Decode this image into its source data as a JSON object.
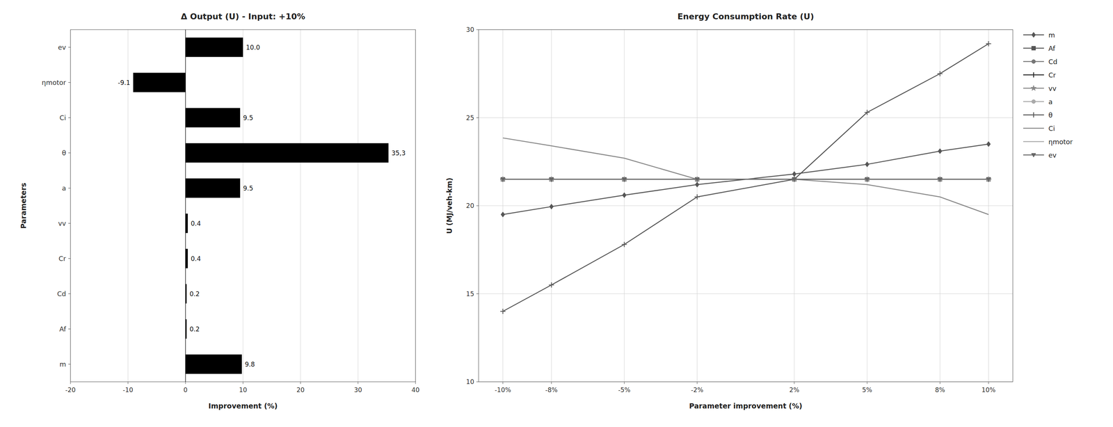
{
  "chart_data": [
    {
      "type": "bar",
      "orientation": "horizontal",
      "title": "Δ Output  (U) - Input: +10%",
      "xlabel": "Improvement (%)",
      "ylabel": "Parameters",
      "categories": [
        "ev",
        "ηmotor",
        "Ci",
        "θ",
        "a",
        "vv",
        "Cr",
        "Cd",
        "Af",
        "m"
      ],
      "values": [
        10.0,
        -9.1,
        9.5,
        35.3,
        9.5,
        0.4,
        0.4,
        0.2,
        0.2,
        9.8
      ],
      "value_labels": [
        "10.0",
        "-9.1",
        "9.5",
        "35,3",
        "9.5",
        "0.4",
        "0.4",
        "0.2",
        "0.2",
        "9.8"
      ],
      "data_labels": true,
      "color": "#000000",
      "xlim": [
        -20,
        40
      ],
      "xticks": [
        -20,
        -10,
        0,
        10,
        20,
        30,
        40
      ],
      "grid": true
    },
    {
      "type": "line",
      "title": "Energy Consumption  Rate (U)",
      "xlabel": "Parameter improvement (%)",
      "ylabel": "U (MJ/veh-km)",
      "x": [
        -10,
        -8,
        -5,
        -2,
        2,
        5,
        8,
        10
      ],
      "xlim": [
        -11,
        11
      ],
      "xticks": [
        {
          "value": -10,
          "label": "-10%"
        },
        {
          "value": -8,
          "label": "-8%"
        },
        {
          "value": -5,
          "label": "-5%"
        },
        {
          "value": -2,
          "label": "-2%"
        },
        {
          "value": 2,
          "label": "2%"
        },
        {
          "value": 5,
          "label": "5%"
        },
        {
          "value": 8,
          "label": "8%"
        },
        {
          "value": 10,
          "label": "10%"
        }
      ],
      "ylim": [
        10,
        30
      ],
      "yticks": [
        10,
        15,
        20,
        25,
        30
      ],
      "grid": true,
      "legend": "right",
      "series": [
        {
          "name": "m",
          "color": "#555555",
          "marker": "diamond",
          "line_style": "solid",
          "values": [
            19.5,
            19.95,
            20.6,
            21.2,
            21.8,
            22.35,
            23.1,
            23.5
          ]
        },
        {
          "name": "Af",
          "color": "#555555",
          "marker": "square",
          "line_style": "solid",
          "values": [
            21.5,
            21.5,
            21.5,
            21.5,
            21.5,
            21.5,
            21.5,
            21.5
          ]
        },
        {
          "name": "Cd",
          "color": "#777777",
          "marker": "circle",
          "line_style": "solid",
          "values": [
            21.5,
            21.5,
            21.5,
            21.5,
            21.5,
            21.5,
            21.5,
            21.5
          ]
        },
        {
          "name": "Cr",
          "color": "#222222",
          "marker": "plus",
          "line_style": "solid",
          "values": [
            21.5,
            21.5,
            21.5,
            21.5,
            21.5,
            21.5,
            21.5,
            21.5
          ]
        },
        {
          "name": "vv",
          "color": "#888888",
          "marker": "star",
          "line_style": "solid",
          "values": [
            21.5,
            21.5,
            21.5,
            21.5,
            21.5,
            21.5,
            21.5,
            21.5
          ]
        },
        {
          "name": "a",
          "color": "#aaaaaa",
          "marker": "circle",
          "line_style": "solid",
          "values": [
            21.5,
            21.5,
            21.5,
            21.5,
            21.5,
            21.5,
            21.5,
            21.5
          ]
        },
        {
          "name": "θ",
          "color": "#555555",
          "marker": "plus",
          "line_style": "solid",
          "values": [
            14.0,
            15.5,
            17.8,
            20.5,
            21.5,
            25.3,
            27.5,
            29.2
          ]
        },
        {
          "name": "Ci",
          "color": "#888888",
          "line_style": "solid",
          "values": [
            23.85,
            23.4,
            22.7,
            21.5,
            21.5,
            21.2,
            20.5,
            19.5
          ]
        },
        {
          "name": "ηmotor",
          "color": "#aaaaaa",
          "line_style": "solid",
          "values": [
            21.5,
            21.5,
            21.5,
            21.5,
            21.5,
            21.5,
            21.5,
            21.5
          ]
        },
        {
          "name": "ev",
          "color": "#666666",
          "marker": "triangle-down",
          "line_style": "solid",
          "values": [
            21.5,
            21.5,
            21.5,
            21.5,
            21.5,
            21.5,
            21.5,
            21.5
          ]
        }
      ]
    }
  ]
}
